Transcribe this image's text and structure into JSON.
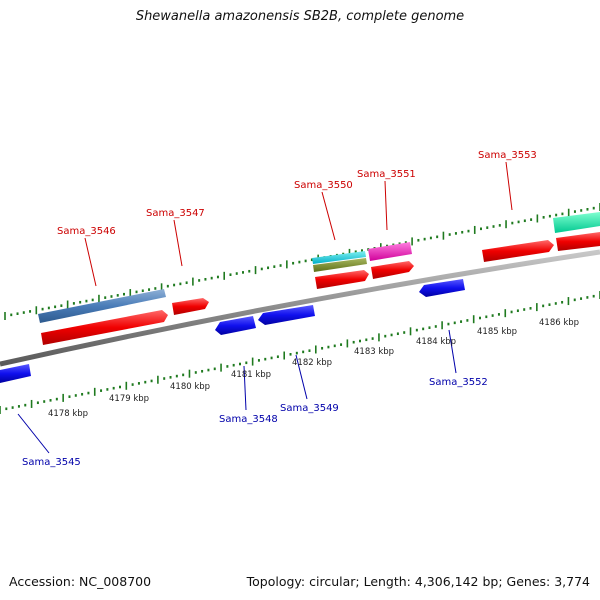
{
  "title": "Shewanella amazonensis SB2B, complete genome",
  "footer": {
    "accession": "Accession: NC_008700",
    "summary": "Topology: circular; Length: 4,306,142 bp; Genes: 3,774"
  },
  "scale_labels": [
    "4178 kbp",
    "4179 kbp",
    "4180 kbp",
    "4181 kbp",
    "4182 kbp",
    "4183 kbp",
    "4184 kbp",
    "4185 kbp",
    "4186 kbp"
  ],
  "gene_labels_forward": [
    "Sama_3546",
    "Sama_3547",
    "Sama_3550",
    "Sama_3551",
    "Sama_3553"
  ],
  "gene_labels_reverse": [
    "Sama_3545",
    "Sama_3548",
    "Sama_3549",
    "Sama_3552"
  ],
  "colors": {
    "forward_label": "#cc0000",
    "reverse_label": "#0000aa",
    "forward_gene": "#ff1a1a",
    "reverse_gene": "#1010ee",
    "track_dots": "#1f7a1f",
    "backbone": "#8c8c8c"
  }
}
